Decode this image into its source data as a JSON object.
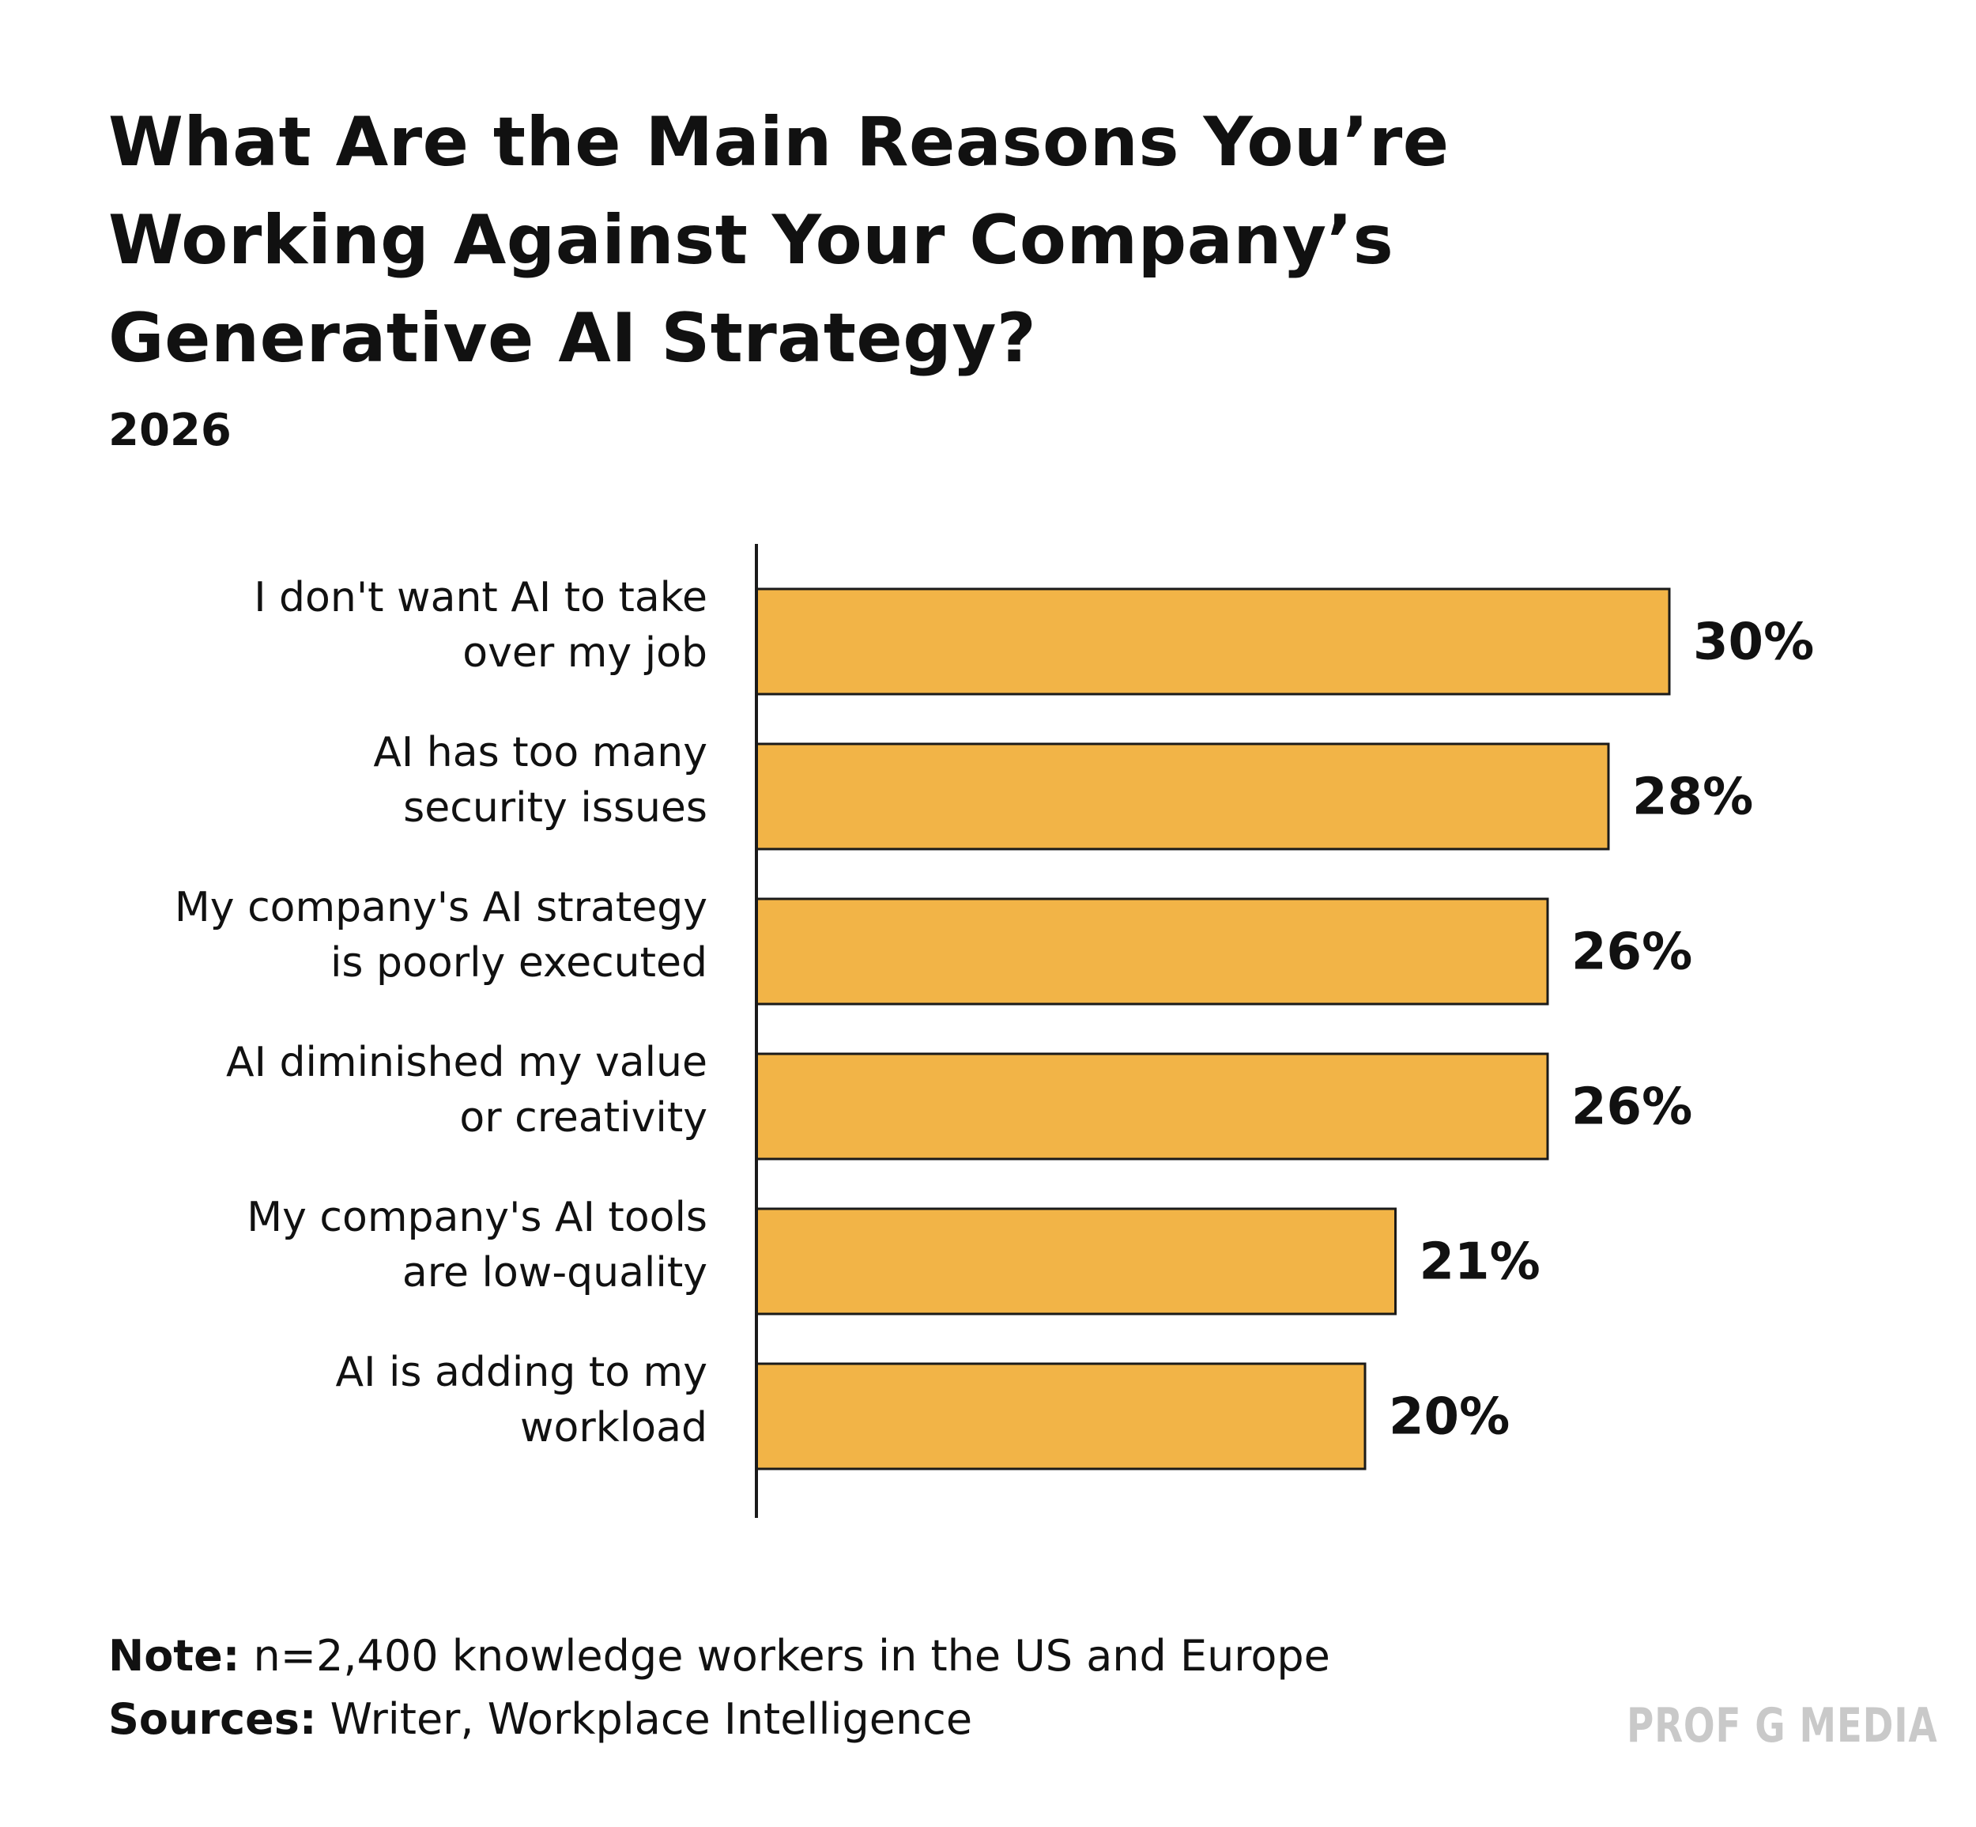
{
  "chart_data": {
    "type": "bar",
    "orientation": "horizontal",
    "title": "What Are the Main Reasons You’re Working Against Your Company’s Generative AI Strategy?",
    "subtitle": "2026",
    "categories": [
      [
        "I don't want AI to take",
        "over my job"
      ],
      [
        "AI has too many",
        "security issues"
      ],
      [
        "My company's AI strategy",
        "is poorly executed"
      ],
      [
        "AI diminished my value",
        "or creativity"
      ],
      [
        "My company's AI tools",
        "are low-quality"
      ],
      [
        "AI is adding to my",
        "workload"
      ]
    ],
    "values": [
      30,
      28,
      26,
      26,
      21,
      20
    ],
    "value_labels": [
      "30%",
      "28%",
      "26%",
      "26%",
      "21%",
      "20%"
    ],
    "unit": "%",
    "xlim": [
      0,
      30
    ],
    "bar_color": "#f2b447",
    "bar_outline_color": "#1a1a1a",
    "grid": false,
    "legend": "none"
  },
  "footer": {
    "note_label": "Note:",
    "note_text": " n=2,400 knowledge workers in the US and Europe",
    "sources_label": "Sources:",
    "sources_text": " Writer, Workplace Intelligence",
    "brand": "PROF G MEDIA"
  }
}
